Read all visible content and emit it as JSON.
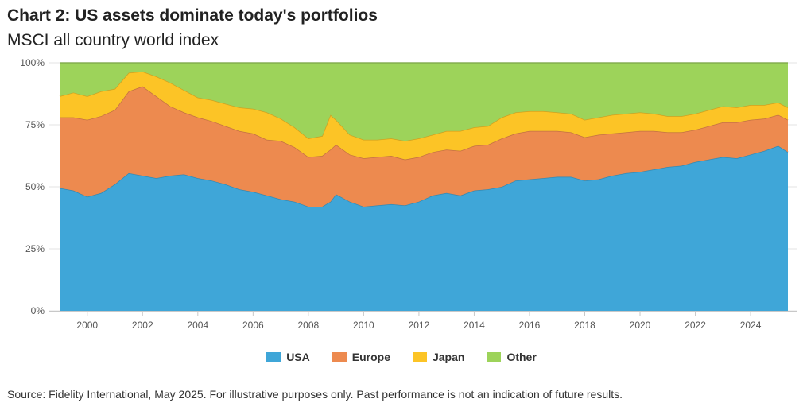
{
  "page": {
    "title": "Chart 2: US assets dominate today's portfolios",
    "subtitle": "MSCI all country world index",
    "source": "Source: Fidelity International, May 2025. For illustrative purposes only. Past performance is not an indication of future results."
  },
  "chart_data": {
    "type": "area",
    "stacked": true,
    "title": "Chart 2: US assets dominate today's portfolios",
    "subtitle": "MSCI all country world index",
    "xlabel": "",
    "ylabel": "",
    "xlim": [
      1999.0,
      2025.35
    ],
    "ylim": [
      0,
      100
    ],
    "y_ticks": [
      0,
      25,
      50,
      75,
      100
    ],
    "y_tick_labels": [
      "0%",
      "25%",
      "50%",
      "75%",
      "100%"
    ],
    "x_ticks": [
      2000,
      2002,
      2004,
      2006,
      2008,
      2010,
      2012,
      2014,
      2016,
      2018,
      2020,
      2022,
      2024
    ],
    "x_tick_labels": [
      "2000",
      "2002",
      "2004",
      "2006",
      "2008",
      "2010",
      "2012",
      "2014",
      "2016",
      "2018",
      "2020",
      "2022",
      "2024"
    ],
    "grid": "horizontal",
    "legend_position": "bottom",
    "x": [
      1999.0,
      1999.5,
      2000.0,
      2000.5,
      2001.0,
      2001.5,
      2002.0,
      2002.5,
      2003.0,
      2003.5,
      2004.0,
      2004.5,
      2005.0,
      2005.5,
      2006.0,
      2006.5,
      2007.0,
      2007.5,
      2008.0,
      2008.5,
      2008.8,
      2009.0,
      2009.5,
      2010.0,
      2010.5,
      2011.0,
      2011.5,
      2012.0,
      2012.5,
      2013.0,
      2013.5,
      2014.0,
      2014.5,
      2015.0,
      2015.5,
      2016.0,
      2016.5,
      2017.0,
      2017.5,
      2018.0,
      2018.5,
      2019.0,
      2019.5,
      2020.0,
      2020.5,
      2021.0,
      2021.5,
      2022.0,
      2022.5,
      2023.0,
      2023.5,
      2024.0,
      2024.5,
      2025.0,
      2025.35
    ],
    "series": [
      {
        "name": "USA",
        "color": "#3fa6d8",
        "values": [
          49.5,
          48.5,
          46,
          47.5,
          51,
          55.5,
          54.5,
          53.5,
          54.5,
          55,
          53.5,
          52.5,
          51,
          49,
          48,
          46.5,
          45,
          44,
          42,
          42,
          44,
          47,
          44,
          42,
          42.5,
          43,
          42.5,
          44,
          46.5,
          47.5,
          46.5,
          48.5,
          49,
          50,
          52.5,
          53,
          53.5,
          54,
          54,
          52.5,
          53,
          54.5,
          55.5,
          56,
          57,
          58,
          58.5,
          60,
          61,
          62,
          61.5,
          63,
          64.5,
          66.5,
          64
        ]
      },
      {
        "name": "Europe",
        "color": "#ed8a4f",
        "values": [
          28.5,
          29.5,
          31,
          31,
          30,
          33,
          36,
          33,
          28,
          25,
          24.5,
          24,
          23.5,
          23.5,
          23.5,
          22.5,
          23.5,
          22,
          20,
          20.5,
          21,
          20,
          19,
          19.5,
          19.5,
          19.5,
          18.5,
          18,
          17.5,
          17.5,
          18,
          18,
          18,
          19.5,
          19,
          19.5,
          19,
          18.5,
          18,
          17.5,
          18,
          17,
          16.5,
          16.5,
          15.5,
          14,
          13.5,
          13,
          13.5,
          14,
          14.5,
          14,
          13,
          12.5,
          13
        ]
      },
      {
        "name": "Japan",
        "color": "#fcc426",
        "values": [
          8.5,
          10,
          9.5,
          10,
          8.5,
          7.5,
          6,
          8,
          9.5,
          9,
          8,
          8.5,
          9,
          9.5,
          10,
          11,
          9,
          8,
          7.5,
          8,
          14,
          10,
          8,
          7.5,
          7,
          7,
          7.5,
          7.5,
          7,
          7.5,
          8,
          7.5,
          7.5,
          8.5,
          8.5,
          8,
          8,
          7.5,
          7.5,
          7,
          7,
          7.5,
          7.5,
          7.5,
          7,
          6.5,
          6.5,
          6.5,
          6.5,
          6.5,
          6,
          6,
          5.5,
          5,
          5
        ]
      },
      {
        "name": "Other",
        "color": "#9dd35a",
        "values": [
          13.5,
          12,
          13.5,
          11.5,
          10.5,
          4,
          3.5,
          5.5,
          8,
          11,
          14,
          15,
          16.5,
          18,
          18.5,
          20,
          22.5,
          26,
          30.5,
          29.5,
          21,
          23,
          29,
          31,
          31,
          30.5,
          31.5,
          30.5,
          29,
          27.5,
          27.5,
          26,
          25.5,
          22,
          20,
          19.5,
          19.5,
          20,
          20.5,
          23,
          22,
          21,
          20.5,
          20,
          20.5,
          21.5,
          21.5,
          20.5,
          19,
          17.5,
          18,
          17,
          17,
          16,
          18
        ]
      }
    ]
  }
}
